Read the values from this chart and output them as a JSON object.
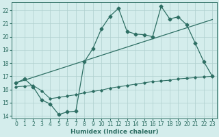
{
  "xlabel": "Humidex (Indice chaleur)",
  "bg_color": "#d4edec",
  "line_color": "#2d6e63",
  "grid_color": "#b0d0ce",
  "xlim": [
    -0.5,
    23.5
  ],
  "ylim": [
    13.8,
    22.6
  ],
  "xticks": [
    0,
    1,
    2,
    3,
    4,
    5,
    6,
    7,
    8,
    9,
    10,
    11,
    12,
    13,
    14,
    15,
    16,
    17,
    18,
    19,
    20,
    21,
    22,
    23
  ],
  "yticks": [
    14,
    15,
    16,
    17,
    18,
    19,
    20,
    21,
    22
  ],
  "line1_x": [
    0,
    1,
    2,
    3,
    4,
    5,
    6,
    7,
    8,
    9,
    10,
    11,
    12,
    13,
    14,
    15,
    16,
    17,
    18,
    19,
    20,
    21,
    22,
    23
  ],
  "line1_y": [
    16.5,
    16.8,
    16.2,
    15.2,
    14.9,
    14.1,
    14.3,
    14.35,
    18.1,
    19.1,
    20.6,
    21.55,
    22.15,
    20.4,
    20.2,
    20.15,
    20.0,
    22.3,
    21.35,
    21.5,
    20.9,
    19.5,
    18.1,
    17.0
  ],
  "line2_x": [
    0,
    23
  ],
  "line2_y": [
    16.5,
    21.3
  ],
  "line3_x": [
    0,
    1,
    2,
    3,
    4,
    5,
    6,
    7,
    8,
    9,
    10,
    11,
    12,
    13,
    14,
    15,
    16,
    17,
    18,
    19,
    20,
    21,
    22,
    23
  ],
  "line3_y": [
    16.2,
    16.25,
    16.3,
    15.9,
    15.3,
    15.4,
    15.5,
    15.6,
    15.75,
    15.85,
    15.95,
    16.1,
    16.2,
    16.3,
    16.4,
    16.5,
    16.6,
    16.65,
    16.7,
    16.8,
    16.85,
    16.9,
    16.95,
    17.0
  ],
  "marker": "D",
  "markersize": 2.5,
  "fontsize_tick": 5.5,
  "fontsize_xlabel": 6.5
}
